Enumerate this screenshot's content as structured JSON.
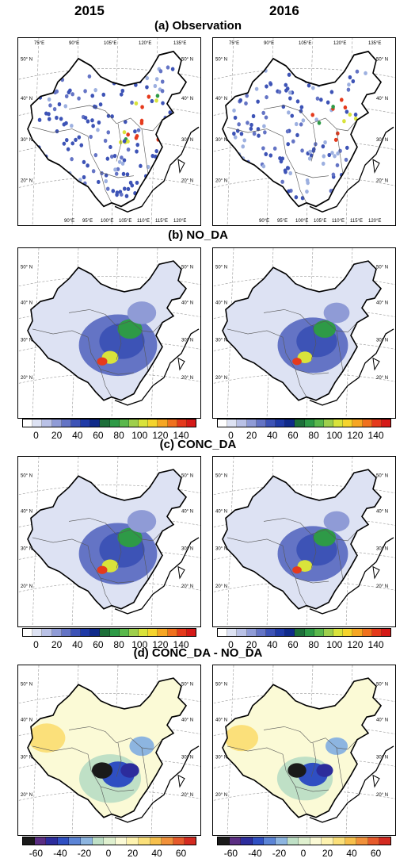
{
  "years": [
    "2015",
    "2016"
  ],
  "titles": {
    "a": "(a) Observation",
    "b": "(b) NO_DA",
    "c": "(c) CONC_DA",
    "d": "(d) CONC_DA - NO_DA"
  },
  "lon_top": [
    "75°E",
    "90°E",
    "105°E",
    "120°E",
    "135°E"
  ],
  "lon_bottom": [
    "90°E",
    "95°E",
    "100°E",
    "105°E",
    "110°E",
    "115°E",
    "120°E"
  ],
  "lat": [
    "50° N",
    "40° N",
    "30° N",
    "20° N"
  ],
  "colorbar_conc": {
    "ticks": [
      "0",
      "20",
      "40",
      "60",
      "80",
      "100",
      "120",
      "140"
    ],
    "colors": [
      "#ffffff",
      "#dde2f3",
      "#b9c1e6",
      "#8f9bd6",
      "#6474c5",
      "#3d53b6",
      "#1f3aa6",
      "#0f2a8a",
      "#1d6f3a",
      "#2e9a47",
      "#5ab84c",
      "#9ecf4c",
      "#d9e33b",
      "#f5d42d",
      "#f6a623",
      "#f0711e",
      "#e53a1c",
      "#d51a18"
    ]
  },
  "colorbar_diff": {
    "ticks": [
      "-60",
      "-40",
      "-20",
      "0",
      "20",
      "40",
      "60"
    ],
    "colors": [
      "#1a1a1a",
      "#5a2d82",
      "#2c2c9c",
      "#2f4fc2",
      "#5b84d6",
      "#8db5e0",
      "#bfe0c6",
      "#dff0cf",
      "#fbfad6",
      "#fef3b0",
      "#fbe07a",
      "#f7c04c",
      "#f1913a",
      "#e65a2b",
      "#d32a20"
    ]
  }
}
